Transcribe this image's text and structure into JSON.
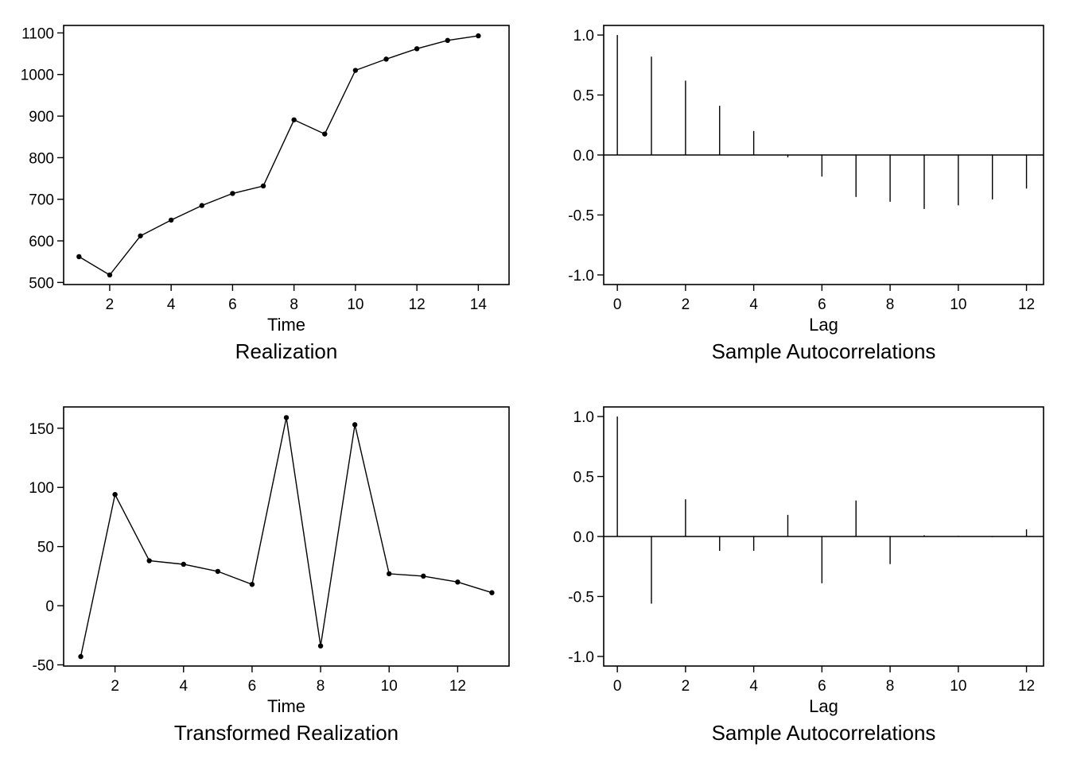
{
  "chart_data": [
    {
      "type": "line",
      "title": "Realization",
      "xlabel": "Time",
      "ylabel": "",
      "x": [
        1,
        2,
        3,
        4,
        5,
        6,
        7,
        8,
        9,
        10,
        11,
        12,
        13,
        14
      ],
      "y": [
        562,
        518,
        612,
        650,
        685,
        714,
        732,
        891,
        857,
        1010,
        1037,
        1062,
        1082,
        1093
      ],
      "xlim": [
        0.5,
        15.0
      ],
      "ylim": [
        495,
        1118
      ],
      "xticks": [
        2,
        4,
        6,
        8,
        10,
        12,
        14
      ],
      "yticks": [
        500,
        600,
        700,
        800,
        900,
        1000,
        1100
      ],
      "ytick_labels": [
        "500",
        "600",
        "700",
        "800",
        "900",
        "1000",
        "1100"
      ],
      "markers": true
    },
    {
      "type": "bar",
      "title": "Sample Autocorrelations",
      "xlabel": "Lag",
      "ylabel": "",
      "x": [
        0,
        1,
        2,
        3,
        4,
        5,
        6,
        7,
        8,
        9,
        10,
        11,
        12
      ],
      "y": [
        1.0,
        0.82,
        0.62,
        0.41,
        0.2,
        -0.02,
        -0.18,
        -0.35,
        -0.39,
        -0.45,
        -0.42,
        -0.37,
        -0.28
      ],
      "xlim": [
        -0.4,
        12.5
      ],
      "ylim": [
        -1.08,
        1.08
      ],
      "xticks": [
        0,
        2,
        4,
        6,
        8,
        10,
        12
      ],
      "yticks": [
        -1.0,
        -0.5,
        0.0,
        0.5,
        1.0
      ],
      "ytick_labels": [
        "-1.0",
        "-0.5",
        "0.0",
        "0.5",
        "1.0"
      ],
      "zero_line": true
    },
    {
      "type": "line",
      "title": "Transformed Realization",
      "xlabel": "Time",
      "ylabel": "",
      "x": [
        1,
        2,
        3,
        4,
        5,
        6,
        7,
        8,
        9,
        10,
        11,
        12,
        13
      ],
      "y": [
        -43,
        94,
        38,
        35,
        29,
        18,
        159,
        -34,
        153,
        27,
        25,
        20,
        11
      ],
      "xlim": [
        0.5,
        13.5
      ],
      "ylim": [
        -51,
        168
      ],
      "xticks": [
        2,
        4,
        6,
        8,
        10,
        12
      ],
      "yticks": [
        -50,
        0,
        50,
        100,
        150
      ],
      "ytick_labels": [
        "-50",
        "0",
        "50",
        "100",
        "150"
      ],
      "markers": true
    },
    {
      "type": "bar",
      "title": "Sample Autocorrelations",
      "xlabel": "Lag",
      "ylabel": "",
      "x": [
        0,
        1,
        2,
        3,
        4,
        5,
        6,
        7,
        8,
        9,
        10,
        11,
        12
      ],
      "y": [
        1.0,
        -0.56,
        0.31,
        -0.12,
        -0.12,
        0.18,
        -0.39,
        0.3,
        -0.23,
        0.01,
        0.005,
        -0.005,
        0.06
      ],
      "xlim": [
        -0.4,
        12.5
      ],
      "ylim": [
        -1.08,
        1.08
      ],
      "xticks": [
        0,
        2,
        4,
        6,
        8,
        10,
        12
      ],
      "yticks": [
        -1.0,
        -0.5,
        0.0,
        0.5,
        1.0
      ],
      "ytick_labels": [
        "-1.0",
        "-0.5",
        "0.0",
        "0.5",
        "1.0"
      ],
      "zero_line": true
    }
  ]
}
